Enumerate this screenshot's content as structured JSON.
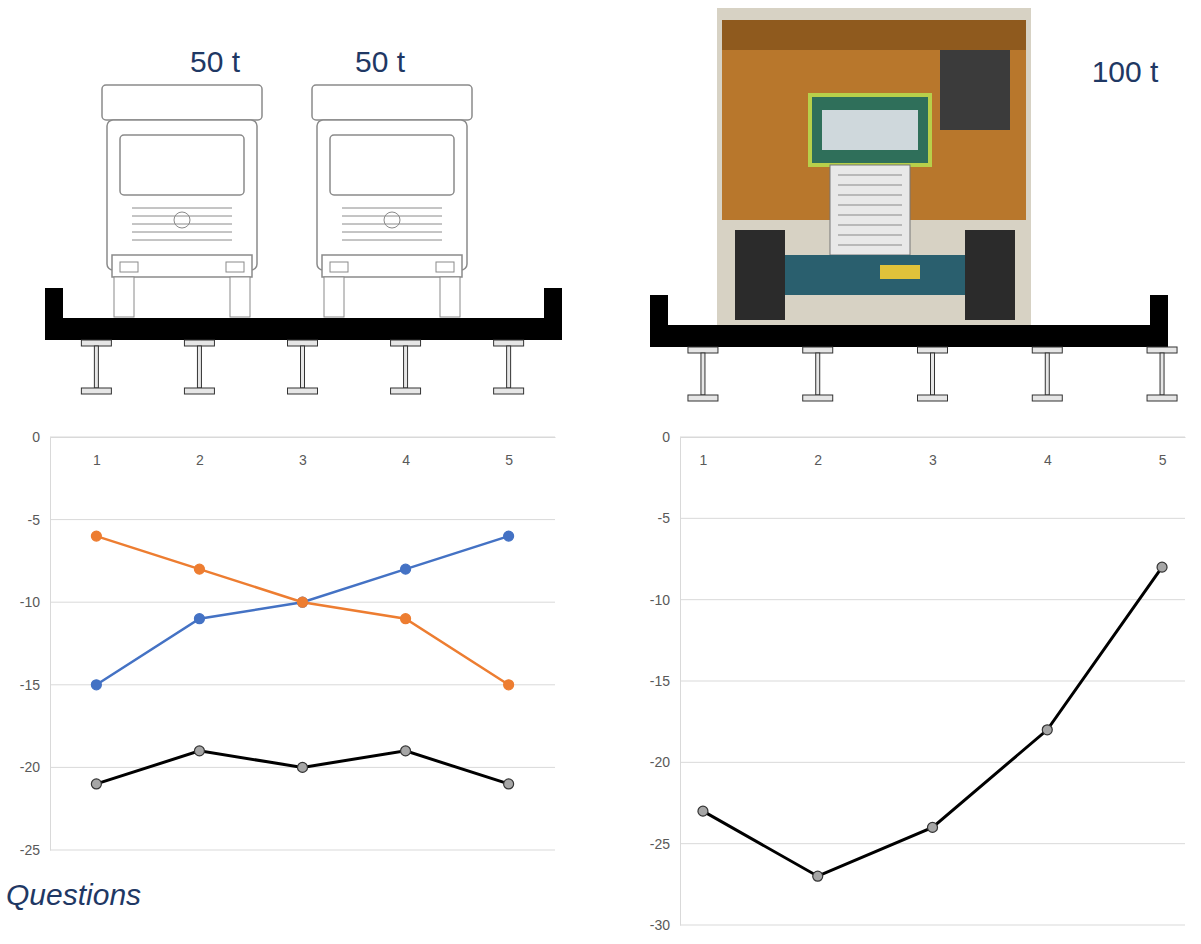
{
  "chart_data": [
    {
      "type": "line",
      "annotations": [
        "50 t",
        "50 t"
      ],
      "categories": [
        "1",
        "2",
        "3",
        "4",
        "5"
      ],
      "series": [
        {
          "color": "#4472c4",
          "marker": "circle",
          "values": [
            -15,
            -11,
            -10,
            -8,
            -6
          ]
        },
        {
          "color": "#ed7d31",
          "marker": "circle",
          "values": [
            -6,
            -8,
            -10,
            -11,
            -15
          ]
        },
        {
          "color": "#000000",
          "marker": "circle",
          "values": [
            -21,
            -19,
            -20,
            -19,
            -21
          ]
        }
      ],
      "ylim": [
        -25,
        0
      ],
      "yticks": [
        0,
        -5,
        -10,
        -15,
        -20,
        -25
      ],
      "grid": true
    },
    {
      "type": "line",
      "annotations": [
        "100 t"
      ],
      "categories": [
        "1",
        "2",
        "3",
        "4",
        "5"
      ],
      "series": [
        {
          "color": "#000000",
          "marker": "circle",
          "values": [
            -23,
            -27,
            -24,
            -18,
            -8
          ]
        }
      ],
      "ylim": [
        -30,
        0
      ],
      "yticks": [
        0,
        -5,
        -10,
        -15,
        -20,
        -25,
        -30
      ],
      "grid": true
    }
  ],
  "footer": "Questions"
}
